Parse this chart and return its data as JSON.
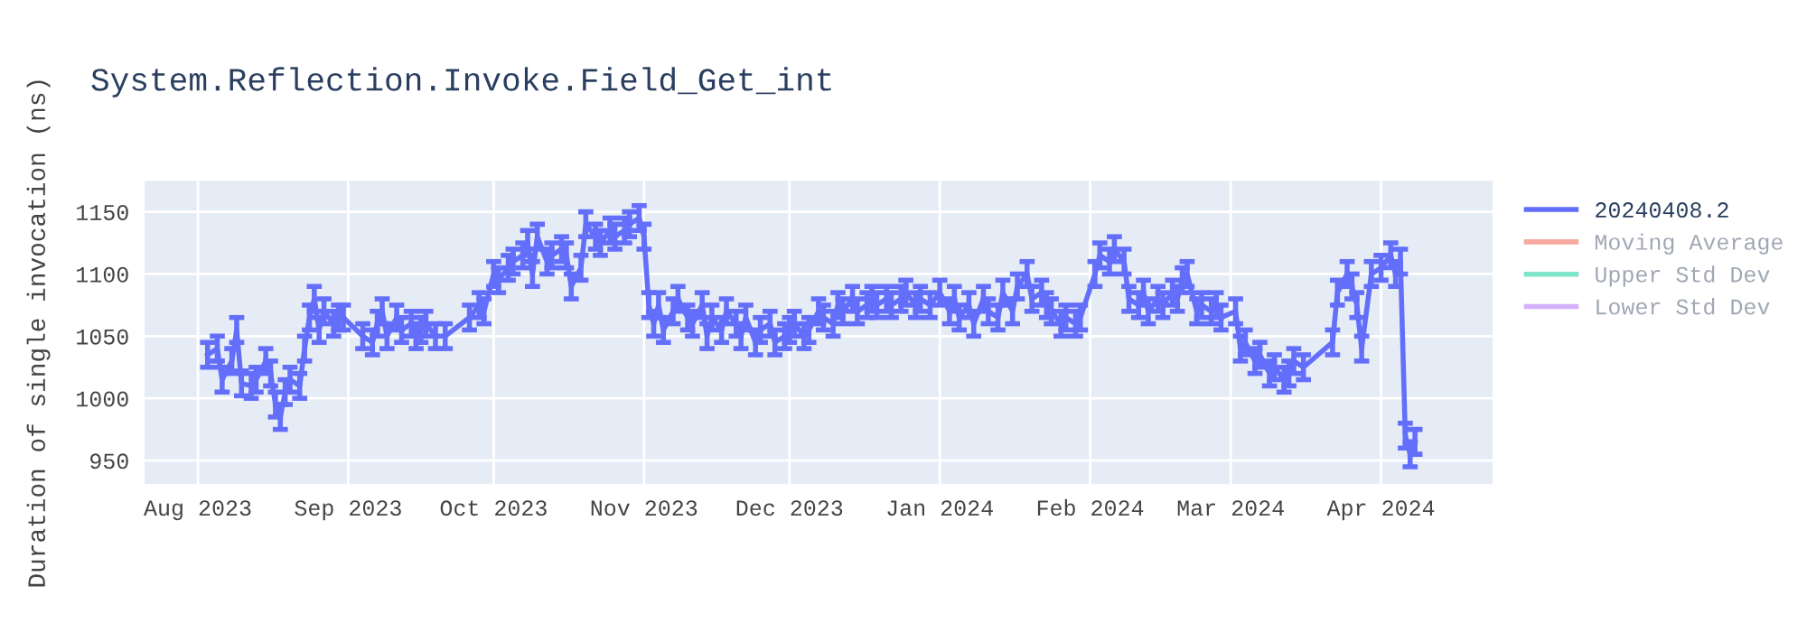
{
  "chart_data": {
    "type": "line",
    "title": "System.Reflection.Invoke.Field_Get_int",
    "ylabel": "Duration of single invocation (ns)",
    "xlim": [
      "2023-07-21",
      "2024-04-24"
    ],
    "ylim": [
      931,
      1175
    ],
    "xticks": [
      {
        "value": "2023-08-01",
        "label": "Aug 2023"
      },
      {
        "value": "2023-09-01",
        "label": "Sep 2023"
      },
      {
        "value": "2023-10-01",
        "label": "Oct 2023"
      },
      {
        "value": "2023-11-01",
        "label": "Nov 2023"
      },
      {
        "value": "2023-12-01",
        "label": "Dec 2023"
      },
      {
        "value": "2024-01-01",
        "label": "Jan 2024"
      },
      {
        "value": "2024-02-01",
        "label": "Feb 2024"
      },
      {
        "value": "2024-03-01",
        "label": "Mar 2024"
      },
      {
        "value": "2024-04-01",
        "label": "Apr 2024"
      }
    ],
    "yticks": [
      950,
      1000,
      1050,
      1100,
      1150
    ],
    "grid": true,
    "legend": "right",
    "marker": "none",
    "line_style": "solid",
    "series": [
      {
        "name": "20240408.2",
        "color": "#636efa",
        "x": [
          "2023-08-03",
          "2023-08-05",
          "2023-08-06",
          "2023-08-08",
          "2023-08-09",
          "2023-08-10",
          "2023-08-12",
          "2023-08-13",
          "2023-08-15",
          "2023-08-16",
          "2023-08-17",
          "2023-08-18",
          "2023-08-19",
          "2023-08-20",
          "2023-08-22",
          "2023-08-23",
          "2023-08-24",
          "2023-08-25",
          "2023-08-26",
          "2023-08-27",
          "2023-08-29",
          "2023-08-30",
          "2023-08-31",
          "2023-09-04",
          "2023-09-06",
          "2023-09-07",
          "2023-09-08",
          "2023-09-09",
          "2023-09-11",
          "2023-09-12",
          "2023-09-14",
          "2023-09-15",
          "2023-09-16",
          "2023-09-17",
          "2023-09-19",
          "2023-09-21",
          "2023-09-26",
          "2023-09-28",
          "2023-09-29",
          "2023-10-01",
          "2023-10-02",
          "2023-10-04",
          "2023-10-05",
          "2023-10-07",
          "2023-10-08",
          "2023-10-09",
          "2023-10-10",
          "2023-10-12",
          "2023-10-13",
          "2023-10-15",
          "2023-10-16",
          "2023-10-17",
          "2023-10-19",
          "2023-10-20",
          "2023-10-22",
          "2023-10-23",
          "2023-10-25",
          "2023-10-26",
          "2023-10-28",
          "2023-10-29",
          "2023-10-31",
          "2023-11-01",
          "2023-11-02",
          "2023-11-03",
          "2023-11-04",
          "2023-11-05",
          "2023-11-07",
          "2023-11-08",
          "2023-11-10",
          "2023-11-11",
          "2023-11-13",
          "2023-11-14",
          "2023-11-15",
          "2023-11-17",
          "2023-11-18",
          "2023-11-20",
          "2023-11-21",
          "2023-11-22",
          "2023-11-24",
          "2023-11-25",
          "2023-11-27",
          "2023-11-28",
          "2023-11-30",
          "2023-12-01",
          "2023-12-02",
          "2023-12-04",
          "2023-12-05",
          "2023-12-07",
          "2023-12-08",
          "2023-12-10",
          "2023-12-11",
          "2023-12-12",
          "2023-12-14",
          "2023-12-15",
          "2023-12-17",
          "2023-12-18",
          "2023-12-19",
          "2023-12-21",
          "2023-12-22",
          "2023-12-24",
          "2023-12-25",
          "2023-12-27",
          "2023-12-28",
          "2023-12-30",
          "2024-01-01",
          "2024-01-03",
          "2024-01-04",
          "2024-01-05",
          "2024-01-07",
          "2024-01-08",
          "2024-01-10",
          "2024-01-11",
          "2024-01-13",
          "2024-01-14",
          "2024-01-16",
          "2024-01-17",
          "2024-01-19",
          "2024-01-20",
          "2024-01-22",
          "2024-01-23",
          "2024-01-24",
          "2024-01-26",
          "2024-01-27",
          "2024-01-29",
          "2024-01-30",
          "2024-02-02",
          "2024-02-03",
          "2024-02-05",
          "2024-02-06",
          "2024-02-08",
          "2024-02-09",
          "2024-02-11",
          "2024-02-12",
          "2024-02-13",
          "2024-02-15",
          "2024-02-16",
          "2024-02-18",
          "2024-02-19",
          "2024-02-20",
          "2024-02-21",
          "2024-02-23",
          "2024-02-24",
          "2024-02-26",
          "2024-02-27",
          "2024-02-28",
          "2024-03-02",
          "2024-03-03",
          "2024-03-04",
          "2024-03-06",
          "2024-03-07",
          "2024-03-09",
          "2024-03-10",
          "2024-03-12",
          "2024-03-13",
          "2024-03-14",
          "2024-03-16",
          "2024-03-22",
          "2024-03-23",
          "2024-03-25",
          "2024-03-26",
          "2024-03-27",
          "2024-03-28",
          "2024-03-30",
          "2024-04-01",
          "2024-04-03",
          "2024-04-04",
          "2024-04-05",
          "2024-04-06",
          "2024-04-07",
          "2024-04-08"
        ],
        "values": [
          1035,
          1040,
          1015,
          1030,
          1055,
          1012,
          1010,
          1015,
          1030,
          1020,
          995,
          985,
          1005,
          1015,
          1010,
          1040,
          1065,
          1080,
          1055,
          1070,
          1060,
          1065,
          1065,
          1050,
          1045,
          1060,
          1070,
          1050,
          1065,
          1055,
          1060,
          1050,
          1055,
          1060,
          1050,
          1050,
          1065,
          1075,
          1070,
          1100,
          1095,
          1105,
          1110,
          1115,
          1125,
          1100,
          1130,
          1110,
          1115,
          1120,
          1115,
          1090,
          1105,
          1140,
          1130,
          1125,
          1135,
          1130,
          1135,
          1140,
          1145,
          1130,
          1075,
          1060,
          1075,
          1055,
          1070,
          1080,
          1065,
          1060,
          1075,
          1050,
          1065,
          1055,
          1070,
          1060,
          1050,
          1065,
          1045,
          1055,
          1060,
          1045,
          1050,
          1055,
          1060,
          1050,
          1055,
          1070,
          1065,
          1060,
          1075,
          1070,
          1080,
          1070,
          1075,
          1080,
          1075,
          1080,
          1075,
          1080,
          1085,
          1075,
          1080,
          1075,
          1085,
          1070,
          1080,
          1065,
          1075,
          1060,
          1080,
          1070,
          1065,
          1085,
          1070,
          1090,
          1100,
          1080,
          1085,
          1075,
          1070,
          1060,
          1065,
          1060,
          1065,
          1100,
          1115,
          1110,
          1120,
          1110,
          1080,
          1075,
          1085,
          1070,
          1080,
          1075,
          1085,
          1080,
          1095,
          1100,
          1070,
          1075,
          1070,
          1075,
          1065,
          1070,
          1040,
          1045,
          1030,
          1035,
          1020,
          1025,
          1015,
          1020,
          1030,
          1025,
          1045,
          1085,
          1100,
          1090,
          1075,
          1040,
          1100,
          1105,
          1115,
          1100,
          1110,
          970,
          955,
          965
        ],
        "errors": [
          10,
          10,
          10,
          10,
          10,
          10,
          10,
          10,
          10,
          10,
          10,
          10,
          10,
          10,
          10,
          10,
          10,
          10,
          10,
          10,
          10,
          10,
          10,
          10,
          10,
          10,
          10,
          10,
          10,
          10,
          10,
          10,
          10,
          10,
          10,
          10,
          10,
          10,
          10,
          10,
          10,
          10,
          10,
          10,
          10,
          10,
          10,
          10,
          10,
          10,
          10,
          10,
          10,
          10,
          10,
          10,
          10,
          10,
          10,
          10,
          10,
          10,
          10,
          10,
          10,
          10,
          10,
          10,
          10,
          10,
          10,
          10,
          10,
          10,
          10,
          10,
          10,
          10,
          10,
          10,
          10,
          10,
          10,
          10,
          10,
          10,
          10,
          10,
          10,
          10,
          10,
          10,
          10,
          10,
          10,
          10,
          10,
          10,
          10,
          10,
          10,
          10,
          10,
          10,
          10,
          10,
          10,
          10,
          10,
          10,
          10,
          10,
          10,
          10,
          10,
          10,
          10,
          10,
          10,
          10,
          10,
          10,
          10,
          10,
          10,
          10,
          10,
          10,
          10,
          10,
          10,
          10,
          10,
          10,
          10,
          10,
          10,
          10,
          10,
          10,
          10,
          10,
          10,
          10,
          10,
          10,
          10,
          10,
          10,
          10,
          10,
          10,
          10,
          10,
          10,
          10,
          10,
          10,
          10,
          10,
          10,
          10,
          10,
          10,
          10,
          10,
          10,
          10,
          10,
          10
        ]
      },
      {
        "name": "Moving Average",
        "color": "#ef553b"
      },
      {
        "name": "Upper Std Dev",
        "color": "#00cc96"
      },
      {
        "name": "Lower Std Dev",
        "color": "#ab63fa"
      }
    ]
  }
}
